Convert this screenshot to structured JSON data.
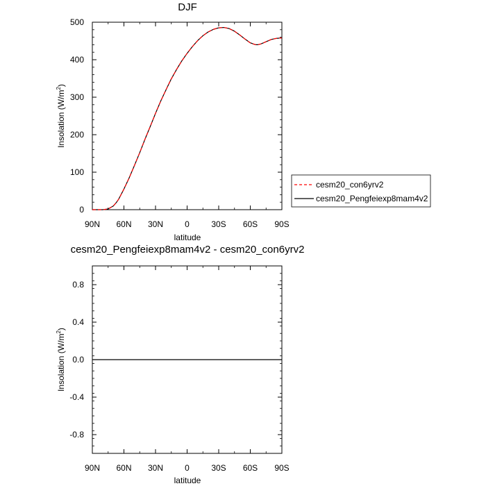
{
  "chart_data": [
    {
      "type": "line",
      "title": "DJF",
      "xlabel": "latitude",
      "ylabel": "Insolation (W/m",
      "ylabel_sup": "2",
      "ylabel_close": ")",
      "xlim": [
        90,
        -90
      ],
      "ylim": [
        0,
        500
      ],
      "xticks": [
        90,
        60,
        30,
        0,
        -30,
        -60,
        -90
      ],
      "xtick_labels": [
        "90N",
        "60N",
        "30N",
        "0",
        "30S",
        "60S",
        "90S"
      ],
      "yticks": [
        0,
        100,
        200,
        300,
        400,
        500
      ],
      "ytick_labels": [
        "0",
        "100",
        "200",
        "300",
        "400",
        "500"
      ],
      "grid": false,
      "legend_position": "right",
      "x": [
        90,
        85,
        80,
        75,
        70,
        67,
        65,
        60,
        55,
        50,
        45,
        40,
        35,
        30,
        25,
        20,
        15,
        10,
        5,
        0,
        -5,
        -10,
        -15,
        -20,
        -25,
        -30,
        -35,
        -40,
        -45,
        -50,
        -55,
        -60,
        -65,
        -67,
        -70,
        -75,
        -80,
        -85,
        -90
      ],
      "series": [
        {
          "name": "cesm20_con6yrv2",
          "color": "#ff0000",
          "dash": "dashed",
          "values": [
            0,
            0,
            0,
            2,
            10,
            20,
            28,
            55,
            85,
            118,
            152,
            188,
            222,
            257,
            290,
            320,
            349,
            374,
            397,
            417,
            435,
            451,
            464,
            474,
            481,
            485,
            486,
            483,
            476,
            466,
            455,
            445,
            440,
            440,
            442,
            448,
            454,
            457,
            458
          ]
        },
        {
          "name": "cesm20_Pengfeiexp8mam4v2",
          "color": "#000000",
          "dash": "solid",
          "values": [
            0,
            0,
            0,
            2,
            10,
            20,
            28,
            55,
            85,
            118,
            152,
            188,
            222,
            257,
            290,
            320,
            349,
            374,
            397,
            417,
            435,
            451,
            464,
            474,
            481,
            485,
            486,
            483,
            476,
            466,
            455,
            445,
            440,
            440,
            442,
            448,
            454,
            457,
            458
          ]
        }
      ]
    },
    {
      "type": "line",
      "title": "cesm20_Pengfeiexp8mam4v2 - cesm20_con6yrv2",
      "xlabel": "latitude",
      "ylabel": "Insolation (W/m",
      "ylabel_sup": "2",
      "ylabel_close": ")",
      "xlim": [
        90,
        -90
      ],
      "ylim": [
        -1,
        1
      ],
      "xticks": [
        90,
        60,
        30,
        0,
        -30,
        -60,
        -90
      ],
      "xtick_labels": [
        "90N",
        "60N",
        "30N",
        "0",
        "30S",
        "60S",
        "90S"
      ],
      "yticks": [
        -0.8,
        -0.4,
        0.0,
        0.4,
        0.8
      ],
      "ytick_labels": [
        "-0.8",
        "-0.4",
        "0.0",
        "0.4",
        "0.8"
      ],
      "grid": false,
      "x": [
        90,
        -90
      ],
      "series": [
        {
          "color": "#000000",
          "dash": "solid",
          "values": [
            0,
            0
          ]
        }
      ]
    }
  ]
}
